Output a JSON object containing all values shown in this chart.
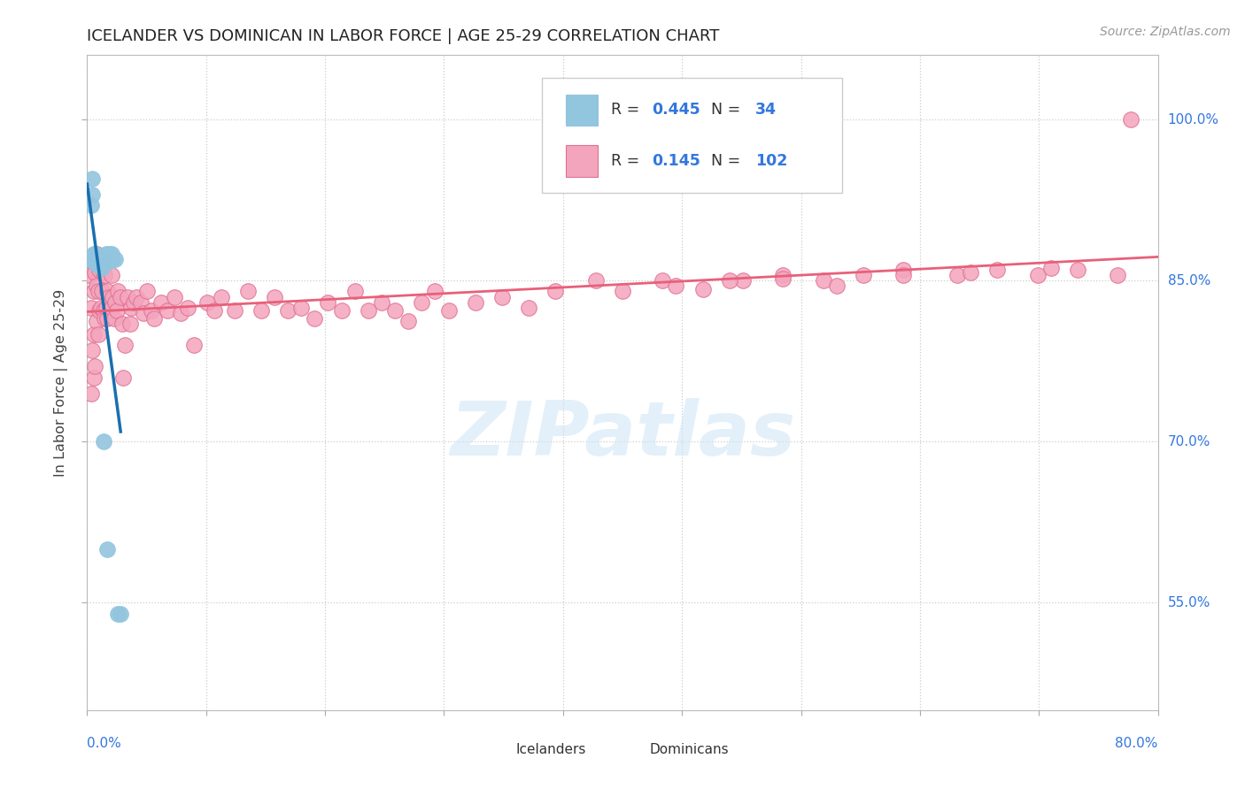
{
  "title": "ICELANDER VS DOMINICAN IN LABOR FORCE | AGE 25-29 CORRELATION CHART",
  "source": "Source: ZipAtlas.com",
  "ylabel": "In Labor Force | Age 25-29",
  "right_yticklabels": [
    "55.0%",
    "70.0%",
    "85.0%",
    "100.0%"
  ],
  "right_ytick_vals": [
    0.55,
    0.7,
    0.85,
    1.0
  ],
  "xlim": [
    0.0,
    0.8
  ],
  "ylim": [
    0.45,
    1.06
  ],
  "legend_R1": "0.445",
  "legend_N1": "34",
  "legend_R2": "0.145",
  "legend_N2": "102",
  "blue_fill": "#92c5de",
  "blue_edge": "#92c5de",
  "pink_fill": "#f4a5be",
  "pink_edge": "#e07090",
  "blue_line_color": "#1a6faf",
  "pink_line_color": "#e8607a",
  "watermark_color": "#cce5f5",
  "icelanders_x": [
    0.001,
    0.002,
    0.003,
    0.004,
    0.004,
    0.005,
    0.005,
    0.006,
    0.006,
    0.006,
    0.007,
    0.007,
    0.007,
    0.007,
    0.008,
    0.008,
    0.009,
    0.009,
    0.01,
    0.01,
    0.011,
    0.012,
    0.013,
    0.014,
    0.014,
    0.015,
    0.016,
    0.016,
    0.017,
    0.018,
    0.019,
    0.021,
    0.023,
    0.025
  ],
  "icelanders_y": [
    0.87,
    0.87,
    0.92,
    0.93,
    0.945,
    0.87,
    0.875,
    0.87,
    0.87,
    0.875,
    0.865,
    0.868,
    0.87,
    0.872,
    0.865,
    0.87,
    0.865,
    0.87,
    0.865,
    0.87,
    0.862,
    0.7,
    0.868,
    0.87,
    0.875,
    0.6,
    0.87,
    0.875,
    0.868,
    0.875,
    0.87,
    0.87,
    0.54,
    0.54
  ],
  "dominicans_x": [
    0.002,
    0.003,
    0.003,
    0.004,
    0.005,
    0.005,
    0.005,
    0.006,
    0.006,
    0.007,
    0.007,
    0.007,
    0.008,
    0.008,
    0.009,
    0.009,
    0.01,
    0.01,
    0.011,
    0.011,
    0.012,
    0.012,
    0.013,
    0.013,
    0.014,
    0.015,
    0.015,
    0.016,
    0.017,
    0.018,
    0.018,
    0.019,
    0.02,
    0.021,
    0.022,
    0.023,
    0.025,
    0.026,
    0.027,
    0.028,
    0.03,
    0.032,
    0.033,
    0.035,
    0.037,
    0.04,
    0.042,
    0.045,
    0.048,
    0.05,
    0.055,
    0.06,
    0.065,
    0.07,
    0.075,
    0.08,
    0.09,
    0.095,
    0.1,
    0.11,
    0.12,
    0.13,
    0.14,
    0.15,
    0.16,
    0.17,
    0.18,
    0.19,
    0.2,
    0.21,
    0.22,
    0.23,
    0.24,
    0.25,
    0.26,
    0.27,
    0.29,
    0.31,
    0.33,
    0.35,
    0.38,
    0.4,
    0.43,
    0.46,
    0.49,
    0.52,
    0.55,
    0.58,
    0.61,
    0.65,
    0.68,
    0.71,
    0.74,
    0.77,
    0.44,
    0.48,
    0.52,
    0.56,
    0.61,
    0.66,
    0.72,
    0.78
  ],
  "dominicans_y": [
    0.855,
    0.745,
    0.825,
    0.785,
    0.76,
    0.8,
    0.84,
    0.77,
    0.858,
    0.812,
    0.845,
    0.875,
    0.8,
    0.84,
    0.822,
    0.86,
    0.825,
    0.865,
    0.84,
    0.87,
    0.822,
    0.858,
    0.815,
    0.855,
    0.825,
    0.84,
    0.815,
    0.835,
    0.822,
    0.855,
    0.825,
    0.835,
    0.815,
    0.83,
    0.822,
    0.84,
    0.835,
    0.81,
    0.76,
    0.79,
    0.835,
    0.81,
    0.825,
    0.83,
    0.835,
    0.83,
    0.82,
    0.84,
    0.822,
    0.815,
    0.83,
    0.822,
    0.835,
    0.82,
    0.825,
    0.79,
    0.83,
    0.822,
    0.835,
    0.822,
    0.84,
    0.822,
    0.835,
    0.822,
    0.825,
    0.815,
    0.83,
    0.822,
    0.84,
    0.822,
    0.83,
    0.822,
    0.812,
    0.83,
    0.84,
    0.822,
    0.83,
    0.835,
    0.825,
    0.84,
    0.85,
    0.84,
    0.85,
    0.842,
    0.85,
    0.855,
    0.85,
    0.855,
    0.86,
    0.855,
    0.86,
    0.855,
    0.86,
    0.855,
    0.845,
    0.85,
    0.852,
    0.845,
    0.855,
    0.858,
    0.862,
    1.0
  ]
}
